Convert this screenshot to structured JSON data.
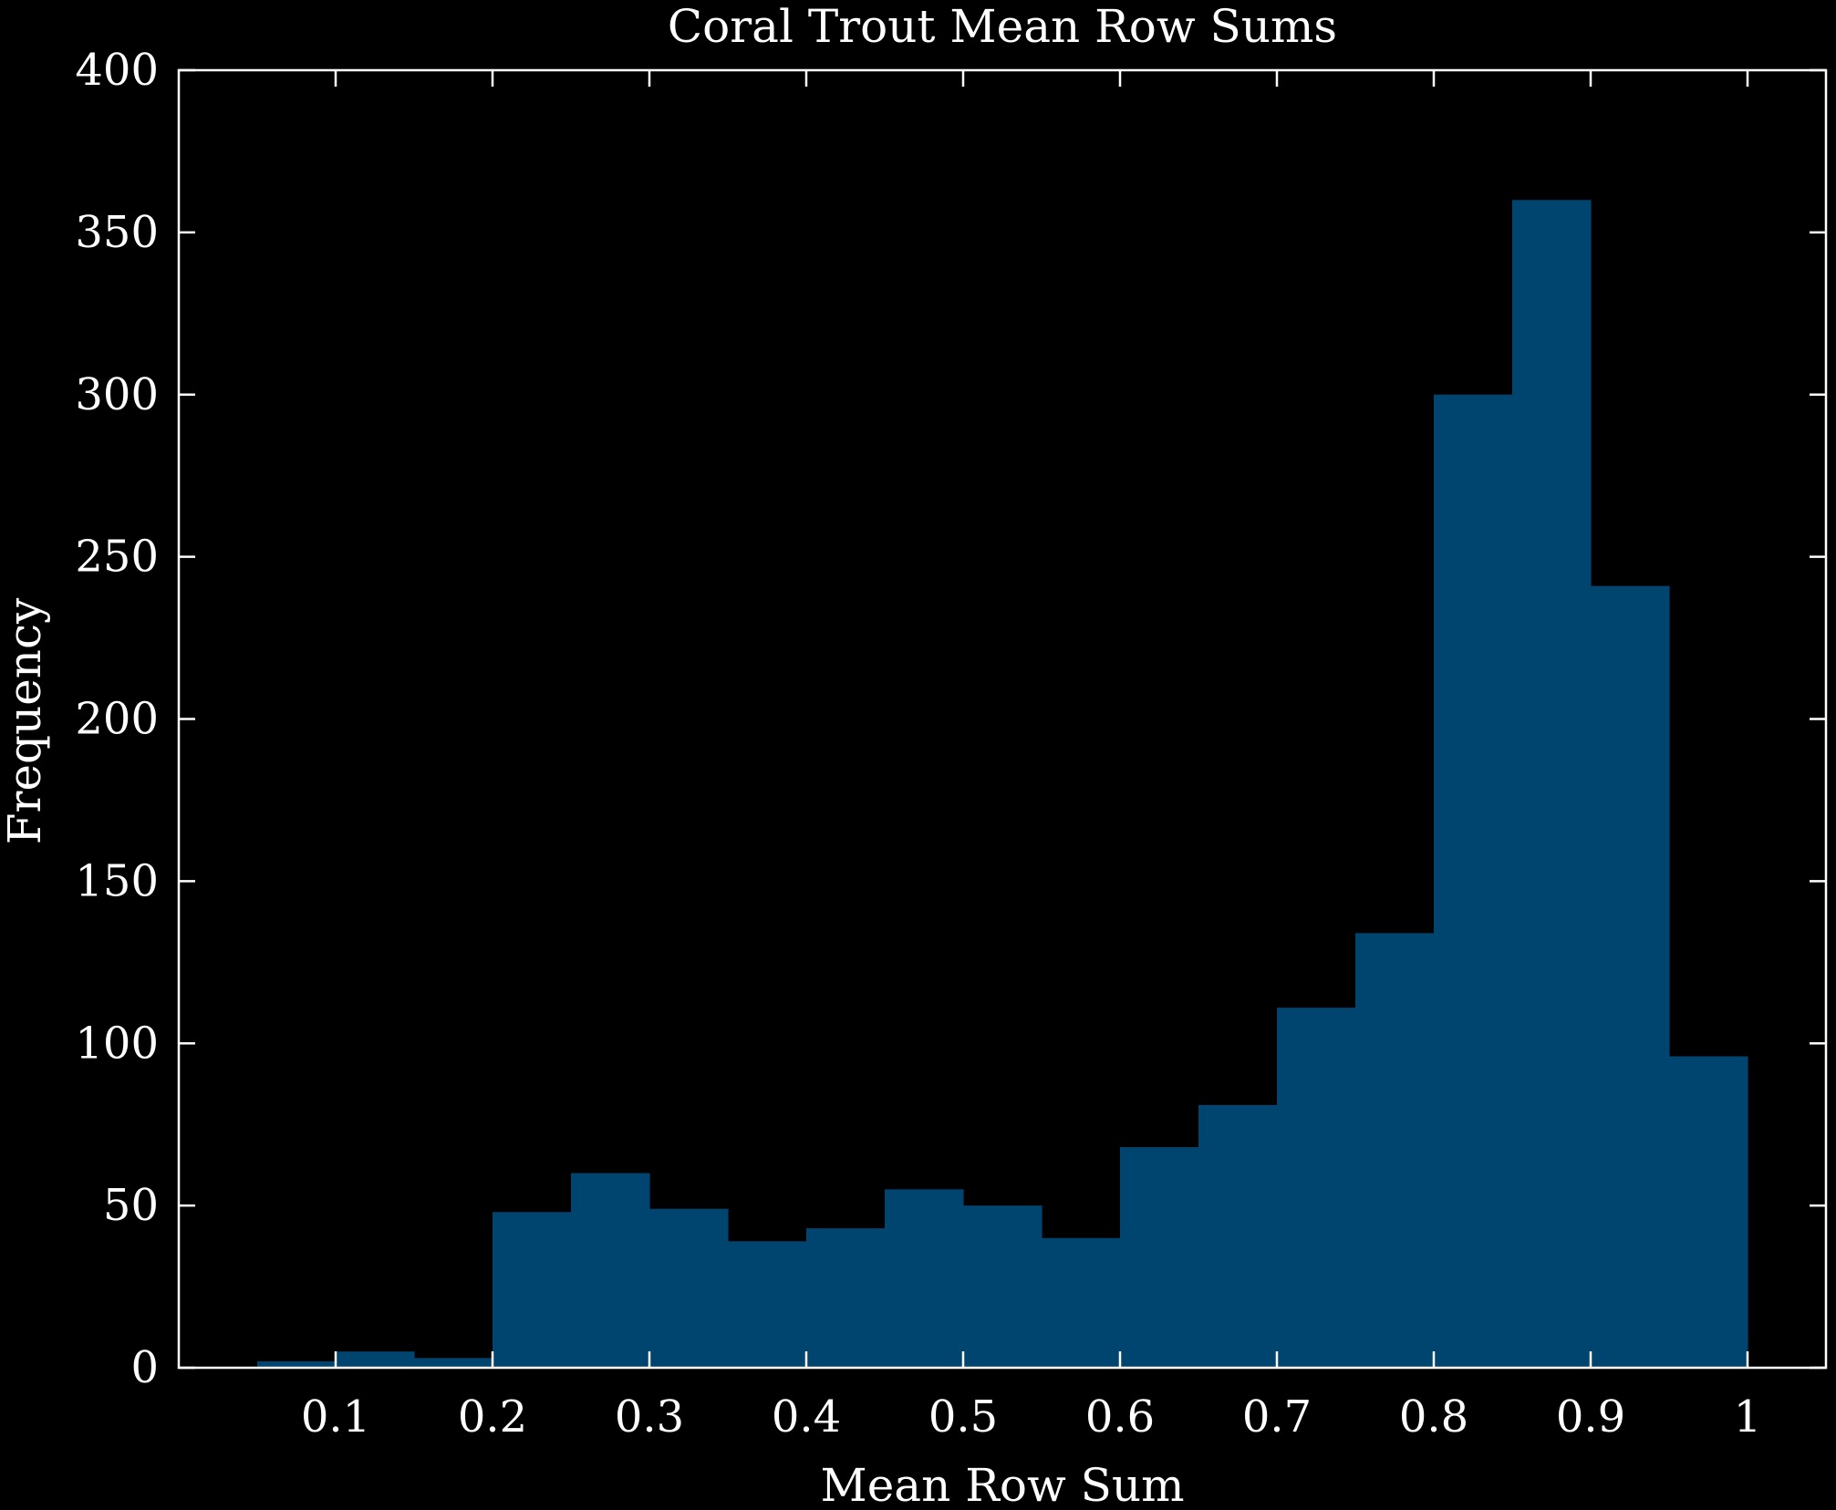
{
  "colors": {
    "background": "#000000",
    "foreground": "#ffffff",
    "bar": "#004470"
  },
  "chart_data": {
    "type": "bar",
    "title": "Coral Trout Mean Row Sums",
    "xlabel": "Mean Row Sum",
    "ylabel": "Frequency",
    "xlim": [
      0,
      1.05
    ],
    "ylim": [
      0,
      400
    ],
    "xticks": [
      0.1,
      0.2,
      0.3,
      0.4,
      0.5,
      0.6,
      0.7,
      0.8,
      0.9,
      1
    ],
    "xtick_labels": [
      "0.1",
      "0.2",
      "0.3",
      "0.4",
      "0.5",
      "0.6",
      "0.7",
      "0.8",
      "0.9",
      "1"
    ],
    "yticks": [
      0,
      50,
      100,
      150,
      200,
      250,
      300,
      350,
      400
    ],
    "ytick_labels": [
      "0",
      "50",
      "100",
      "150",
      "200",
      "250",
      "300",
      "350",
      "400"
    ],
    "bin_edges": [
      0.05,
      0.1,
      0.15,
      0.2,
      0.25,
      0.3,
      0.35,
      0.4,
      0.45,
      0.5,
      0.55,
      0.6,
      0.65,
      0.7,
      0.75,
      0.8,
      0.85,
      0.9,
      0.95,
      1.0
    ],
    "values": [
      2,
      5,
      3,
      48,
      60,
      49,
      39,
      43,
      55,
      50,
      40,
      68,
      81,
      111,
      134,
      300,
      360,
      241,
      96
    ],
    "grid": false,
    "legend": "none"
  }
}
